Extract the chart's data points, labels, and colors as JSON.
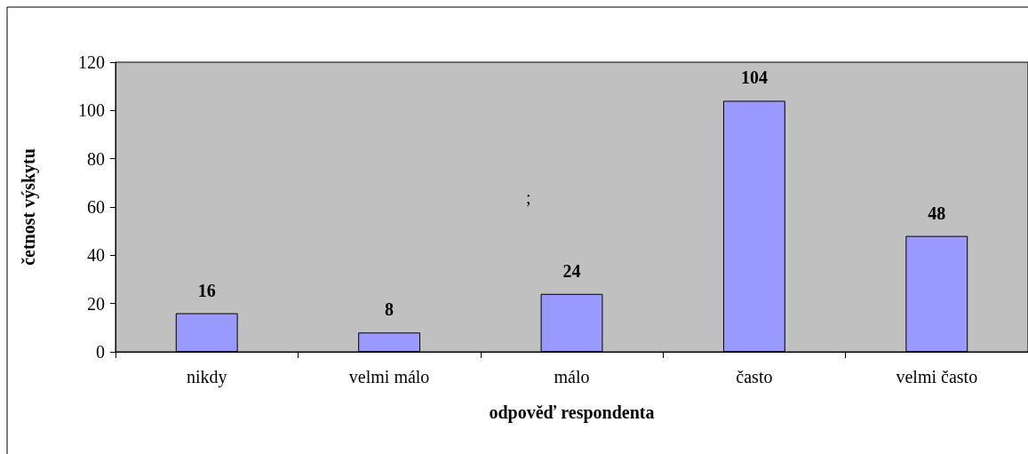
{
  "chart_data": {
    "type": "bar",
    "xlabel": "odpověď respondenta",
    "ylabel": "četnost výskytu",
    "categories": [
      "nikdy",
      "velmi málo",
      "málo",
      "často",
      "velmi často"
    ],
    "values": [
      16,
      8,
      24,
      104,
      48
    ],
    "color": "#9999ff",
    "ylim": [
      0,
      120
    ],
    "yticks": [
      0,
      20,
      40,
      60,
      80,
      100,
      120
    ],
    "grid": false,
    "data_labels": true,
    "annotations": [
      ";"
    ]
  }
}
